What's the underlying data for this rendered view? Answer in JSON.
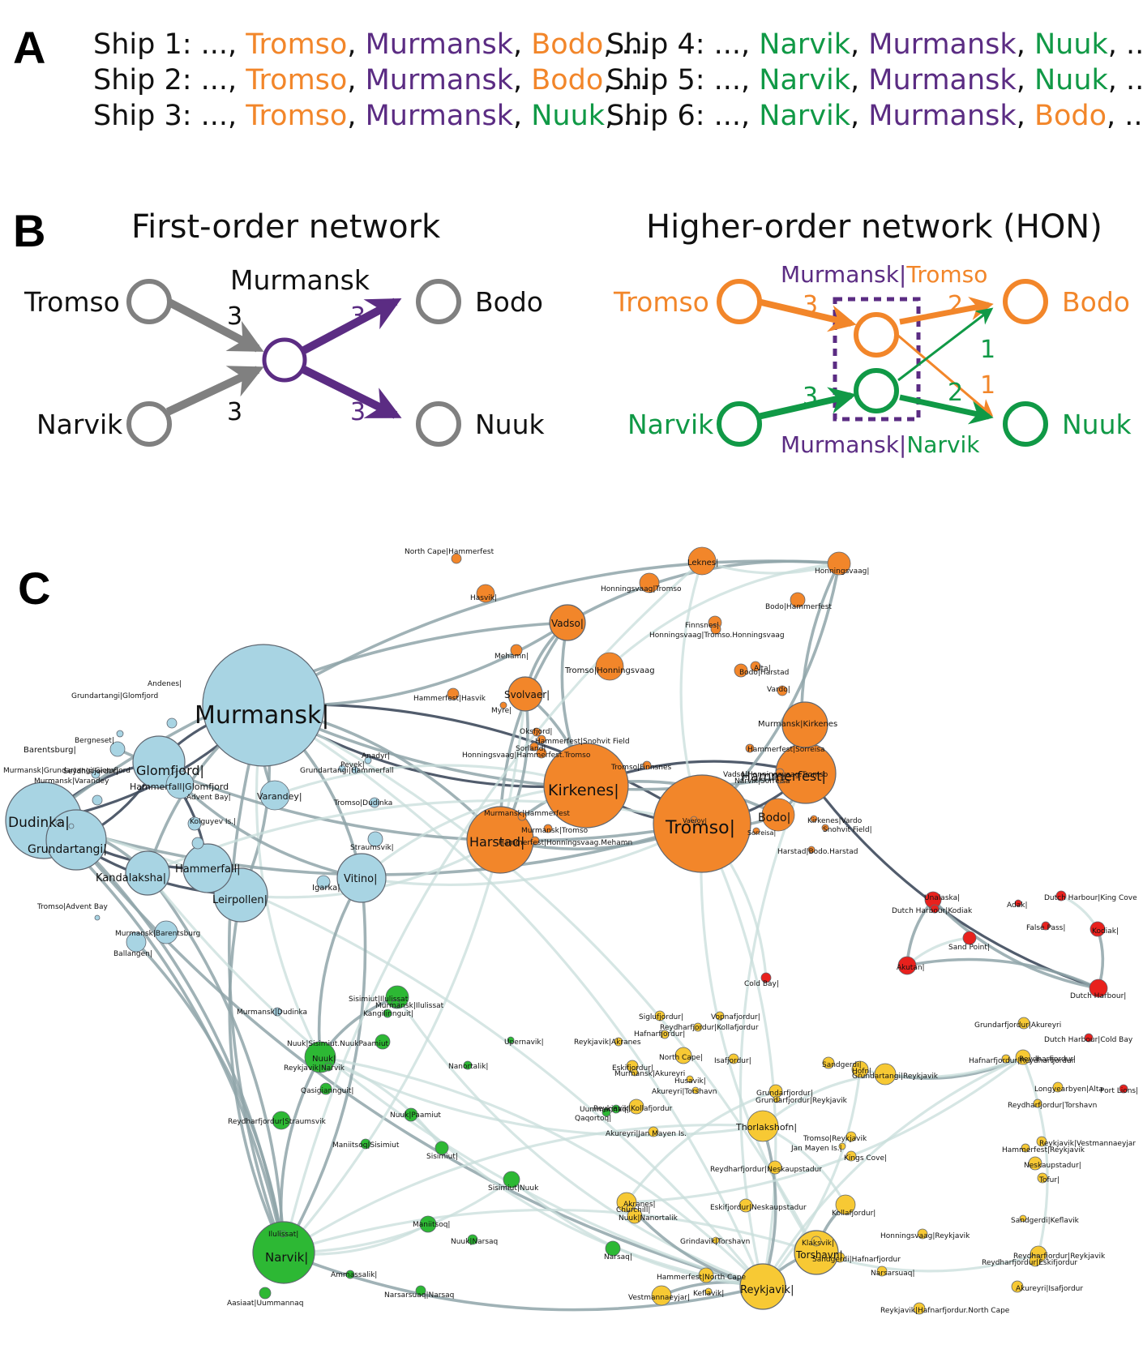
{
  "panel_a": {
    "letter": "A",
    "colors": {
      "text": "#111111",
      "tromso": "#f2862a",
      "murmansk": "#5b2c83",
      "bodo": "#f2862a",
      "nuuk": "#109946",
      "narvik": "#109946"
    },
    "ships": [
      {
        "label": "Ship 1:",
        "lead": " ..., ",
        "ports": [
          {
            "name": "Tromso",
            "color": "tromso"
          },
          {
            "name": "Murmansk",
            "color": "murmansk"
          },
          {
            "name": "Bodo",
            "color": "bodo"
          }
        ],
        "tail": ", ..."
      },
      {
        "label": "Ship 2:",
        "lead": " ..., ",
        "ports": [
          {
            "name": "Tromso",
            "color": "tromso"
          },
          {
            "name": "Murmansk",
            "color": "murmansk"
          },
          {
            "name": "Bodo",
            "color": "bodo"
          }
        ],
        "tail": ", ..."
      },
      {
        "label": "Ship 3:",
        "lead": " ..., ",
        "ports": [
          {
            "name": "Tromso",
            "color": "tromso"
          },
          {
            "name": "Murmansk",
            "color": "murmansk"
          },
          {
            "name": "Nuuk",
            "color": "nuuk"
          }
        ],
        "tail": ", ..."
      },
      {
        "label": "Ship 4:",
        "lead": " ..., ",
        "ports": [
          {
            "name": "Narvik",
            "color": "narvik"
          },
          {
            "name": "Murmansk",
            "color": "murmansk"
          },
          {
            "name": "Nuuk",
            "color": "nuuk"
          }
        ],
        "tail": ", ..."
      },
      {
        "label": "Ship 5:",
        "lead": " ..., ",
        "ports": [
          {
            "name": "Narvik",
            "color": "narvik"
          },
          {
            "name": "Murmansk",
            "color": "murmansk"
          },
          {
            "name": "Nuuk",
            "color": "nuuk"
          }
        ],
        "tail": ", ..."
      },
      {
        "label": "Ship 6:",
        "lead": " ..., ",
        "ports": [
          {
            "name": "Narvik",
            "color": "narvik"
          },
          {
            "name": "Murmansk",
            "color": "murmansk"
          },
          {
            "name": "Bodo",
            "color": "bodo"
          }
        ],
        "tail": ", ..."
      }
    ]
  },
  "panel_b": {
    "letter": "B",
    "first_order": {
      "title": "First-order network",
      "labels": {
        "tromso": "Tromso",
        "narvik": "Narvik",
        "murmansk": "Murmansk",
        "bodo": "Bodo",
        "nuuk": "Nuuk"
      },
      "weights": {
        "tromso_murmansk": "3",
        "narvik_murmansk": "3",
        "murmansk_bodo": "3",
        "murmansk_nuuk": "3"
      },
      "colors": {
        "gray": "#808080",
        "purple": "#5b2c83"
      }
    },
    "hon": {
      "title": "Higher-order network (HON)",
      "labels": {
        "tromso": "Tromso",
        "narvik": "Narvik",
        "bodo": "Bodo",
        "nuuk": "Nuuk",
        "murmansk_tromso": "Murmansk|Tromso",
        "murmansk_narvik": "Murmansk|Narvik"
      },
      "weights": {
        "tromso_mt": "3",
        "narvik_mn": "3",
        "mt_bodo": "2",
        "mt_nuuk": "1",
        "mn_bodo": "1",
        "mn_nuuk": "2"
      },
      "colors": {
        "orange": "#f2862a",
        "green": "#109946",
        "purple": "#5b2c83"
      }
    }
  },
  "panel_c": {
    "letter": "C",
    "group_colors": {
      "blue": "#a8d4e3",
      "orange": "#f2862a",
      "green": "#2db834",
      "yellow": "#f7c934",
      "red": "#e8211d"
    },
    "nodes": [
      {
        "label": "Murmansk|",
        "group": "blue"
      },
      {
        "label": "Dudinka|",
        "group": "blue"
      },
      {
        "label": "Grundartangi|",
        "group": "blue"
      },
      {
        "label": "Glomfjord|",
        "group": "blue"
      },
      {
        "label": "Hammerfall|Glomfjord",
        "group": "blue"
      },
      {
        "label": "Kandalaksha|",
        "group": "blue"
      },
      {
        "label": "Hammerfall|",
        "group": "blue"
      },
      {
        "label": "Leirpollen|",
        "group": "blue"
      },
      {
        "label": "Vitino|",
        "group": "blue"
      },
      {
        "label": "Varandey|",
        "group": "blue"
      },
      {
        "label": "Barentsburg|",
        "group": "blue"
      },
      {
        "label": "Igarka|",
        "group": "blue"
      },
      {
        "label": "Ballangen|",
        "group": "blue"
      },
      {
        "label": "Andenes|",
        "group": "blue"
      },
      {
        "label": "Grundartangi|Glomfjord",
        "group": "blue"
      },
      {
        "label": "Bergneset|",
        "group": "blue"
      },
      {
        "label": "Seydhisfjordur|",
        "group": "blue"
      },
      {
        "label": "Murmansk|Grundartangi.Glomfjord",
        "group": "blue"
      },
      {
        "label": "Murmansk|Varandey",
        "group": "blue"
      },
      {
        "label": "Advent Bay|",
        "group": "blue"
      },
      {
        "label": "Kolguyev Is.|",
        "group": "blue"
      },
      {
        "label": "Tromso|Advent Bay",
        "group": "blue"
      },
      {
        "label": "Murmansk|Barentsburg",
        "group": "blue"
      },
      {
        "label": "Anadyr|",
        "group": "blue"
      },
      {
        "label": "Grundartangi|Hammerfall",
        "group": "blue"
      },
      {
        "label": "Tromso|Dudinka",
        "group": "blue"
      },
      {
        "label": "Straumsvik|",
        "group": "blue"
      },
      {
        "label": "Pevek|",
        "group": "blue"
      },
      {
        "label": "Murmansk|Dudinka",
        "group": "blue"
      },
      {
        "label": "Kirkenes|",
        "group": "orange"
      },
      {
        "label": "Tromso|",
        "group": "orange"
      },
      {
        "label": "Harstad|",
        "group": "orange"
      },
      {
        "label": "Hammerfest|",
        "group": "orange"
      },
      {
        "label": "Bodo|",
        "group": "orange"
      },
      {
        "label": "Vadso|",
        "group": "orange"
      },
      {
        "label": "Svolvaer|",
        "group": "orange"
      },
      {
        "label": "Leknes|",
        "group": "orange"
      },
      {
        "label": "Honningsvaag|",
        "group": "orange"
      },
      {
        "label": "Tromso|Honningsvaag",
        "group": "orange"
      },
      {
        "label": "Murmansk|Kirkenes",
        "group": "orange"
      },
      {
        "label": "North Cape|Hammerfest",
        "group": "orange"
      },
      {
        "label": "Hasvik|",
        "group": "orange"
      },
      {
        "label": "Honningsvaag|Tromso",
        "group": "orange"
      },
      {
        "label": "Bodo|Hammerfest",
        "group": "orange"
      },
      {
        "label": "Finnsnes|",
        "group": "orange"
      },
      {
        "label": "Honningsvaag|Tromso.Honningsvaag",
        "group": "orange"
      },
      {
        "label": "Mehamn|",
        "group": "orange"
      },
      {
        "label": "Alta|",
        "group": "orange"
      },
      {
        "label": "Bodo|Harstad",
        "group": "orange"
      },
      {
        "label": "Vardo|",
        "group": "orange"
      },
      {
        "label": "Hammerfest|Hasvik",
        "group": "orange"
      },
      {
        "label": "Myre|",
        "group": "orange"
      },
      {
        "label": "Oksfjord|",
        "group": "orange"
      },
      {
        "label": "Hammerfest|Snohvit Field",
        "group": "orange"
      },
      {
        "label": "Sorland|",
        "group": "orange"
      },
      {
        "label": "Honningsvaag|Hammerfest.Tromso",
        "group": "orange"
      },
      {
        "label": "Tromso|Finnsnes",
        "group": "orange"
      },
      {
        "label": "Hammerfest|Sorreisa",
        "group": "orange"
      },
      {
        "label": "Vadso|Honningsvaag.Tromso",
        "group": "orange"
      },
      {
        "label": "Narvik|Sorreisa",
        "group": "orange"
      },
      {
        "label": "Murmansk|Hammerfest",
        "group": "orange"
      },
      {
        "label": "Murmansk|Tromso",
        "group": "orange"
      },
      {
        "label": "Hammerfest|Honningsvaag.Mehamn",
        "group": "orange"
      },
      {
        "label": "Vaeroy|",
        "group": "orange"
      },
      {
        "label": "Sorreisa|",
        "group": "orange"
      },
      {
        "label": "Kirkenes|Vardo",
        "group": "orange"
      },
      {
        "label": "Snohvit Field|",
        "group": "orange"
      },
      {
        "label": "Harstad|Bodo.Harstad",
        "group": "orange"
      },
      {
        "label": "Narvik|",
        "group": "green"
      },
      {
        "label": "Nuuk|",
        "group": "green"
      },
      {
        "label": "Ilulissat|",
        "group": "green"
      },
      {
        "label": "Sisimiut|Ilulissat",
        "group": "green"
      },
      {
        "label": "Murmansk|Ilulissat",
        "group": "green"
      },
      {
        "label": "Kangilinnguit|",
        "group": "green"
      },
      {
        "label": "Nuuk|Sisimiut.NuukPaamiut",
        "group": "green"
      },
      {
        "label": "Reykjavik|Narvik",
        "group": "green"
      },
      {
        "label": "Qasigiannguit|",
        "group": "green"
      },
      {
        "label": "Upernavik|",
        "group": "green"
      },
      {
        "label": "Nanortalik|",
        "group": "green"
      },
      {
        "label": "Nuuk|Paamiut",
        "group": "green"
      },
      {
        "label": "Reydharfjordur|Straumsvik",
        "group": "green"
      },
      {
        "label": "Maniitsoq|Sisimiut",
        "group": "green"
      },
      {
        "label": "Sisimiut|",
        "group": "green"
      },
      {
        "label": "Sisimiut|Nuuk",
        "group": "green"
      },
      {
        "label": "Maniitsoq|",
        "group": "green"
      },
      {
        "label": "Nuuk|Narsaq",
        "group": "green"
      },
      {
        "label": "Narsaq|",
        "group": "green"
      },
      {
        "label": "Ammassalik|",
        "group": "green"
      },
      {
        "label": "Aasiaat|Uummannaq",
        "group": "green"
      },
      {
        "label": "Narsarsuaq|Narsaq",
        "group": "green"
      },
      {
        "label": "Uummannaq|",
        "group": "green"
      },
      {
        "label": "Qaqortoq|",
        "group": "green"
      },
      {
        "label": "Reykjavik|",
        "group": "yellow"
      },
      {
        "label": "Torshavn|",
        "group": "yellow"
      },
      {
        "label": "Thorlakshofn|",
        "group": "yellow"
      },
      {
        "label": "Klaksvik|",
        "group": "yellow"
      },
      {
        "label": "Akranes|",
        "group": "yellow"
      },
      {
        "label": "Kollafjordur|",
        "group": "yellow"
      },
      {
        "label": "Grundartangi|Reykjavik",
        "group": "yellow"
      },
      {
        "label": "Hofn|",
        "group": "yellow"
      },
      {
        "label": "Grundarfjordur|",
        "group": "yellow"
      },
      {
        "label": "Grundarfjordur|Reykjavik",
        "group": "yellow"
      },
      {
        "label": "Siglufjordur|",
        "group": "yellow"
      },
      {
        "label": "Reydharfjordur|Kollafjordur",
        "group": "yellow"
      },
      {
        "label": "Hafnarfjordur|",
        "group": "yellow"
      },
      {
        "label": "Reykjavik|Akranes",
        "group": "yellow"
      },
      {
        "label": "Vopnafjordur|",
        "group": "yellow"
      },
      {
        "label": "North Cape|",
        "group": "yellow"
      },
      {
        "label": "Isafjordur|",
        "group": "yellow"
      },
      {
        "label": "Eskifjordur|",
        "group": "yellow"
      },
      {
        "label": "Murmansk|Akureyri",
        "group": "yellow"
      },
      {
        "label": "Husavik|",
        "group": "yellow"
      },
      {
        "label": "Akureyri|Torshavn",
        "group": "yellow"
      },
      {
        "label": "Reykjavik|Kollafjordur",
        "group": "yellow"
      },
      {
        "label": "Akureyri|Jan Mayen Is.",
        "group": "yellow"
      },
      {
        "label": "Jan Mayen Is.|",
        "group": "yellow"
      },
      {
        "label": "Reydharfjordur|Neskaupstadur",
        "group": "yellow"
      },
      {
        "label": "Eskifjordur|Neskaupstadur",
        "group": "yellow"
      },
      {
        "label": "Nuuk|Nanortalik",
        "group": "yellow"
      },
      {
        "label": "Churchill|",
        "group": "yellow"
      },
      {
        "label": "Grindavik|Torshavn",
        "group": "yellow"
      },
      {
        "label": "Hammerfest|North Cape",
        "group": "yellow"
      },
      {
        "label": "Vestmannaeyjar|",
        "group": "yellow"
      },
      {
        "label": "Keflavik|",
        "group": "yellow"
      },
      {
        "label": "Sandgerdi|Hafnarfjordur",
        "group": "yellow"
      },
      {
        "label": "Narsarsuaq|",
        "group": "yellow"
      },
      {
        "label": "Honningsvaag|Reykjavik",
        "group": "yellow"
      },
      {
        "label": "Reydharfjordur|Eskifjordur",
        "group": "yellow"
      },
      {
        "label": "Akureyri|Isafjordur",
        "group": "yellow"
      },
      {
        "label": "Reykjavik|Hafnarfjordur.North Cape",
        "group": "yellow"
      },
      {
        "label": "Sandgerdi|Keflavik",
        "group": "yellow"
      },
      {
        "label": "Reydharfjordur|Reykjavik",
        "group": "yellow"
      },
      {
        "label": "Tofur|",
        "group": "yellow"
      },
      {
        "label": "Neskaupstadur|",
        "group": "yellow"
      },
      {
        "label": "Hammerfest|Reykjavik",
        "group": "yellow"
      },
      {
        "label": "Reykjavik|Vestmannaeyjar",
        "group": "yellow"
      },
      {
        "label": "Reydharfjordur|Torshavn",
        "group": "yellow"
      },
      {
        "label": "Longyearbyen|Alta",
        "group": "yellow"
      },
      {
        "label": "Reydharfjordur|",
        "group": "yellow"
      },
      {
        "label": "Grundarfjordur|Akureyri",
        "group": "yellow"
      },
      {
        "label": "Sandgerdi|",
        "group": "yellow"
      },
      {
        "label": "Hafnarfjordur|Reydharfjordur",
        "group": "yellow"
      },
      {
        "label": "Kings Cove|",
        "group": "yellow"
      },
      {
        "label": "Tromso|Reykjavik",
        "group": "yellow"
      },
      {
        "label": "Dutch Harbour|",
        "group": "red"
      },
      {
        "label": "Akutan|",
        "group": "red"
      },
      {
        "label": "Unalaska|",
        "group": "red"
      },
      {
        "label": "Dutch Harbour|Kodiak",
        "group": "red"
      },
      {
        "label": "Dutch Harbour|King Cove",
        "group": "red"
      },
      {
        "label": "Adak|",
        "group": "red"
      },
      {
        "label": "False Pass|",
        "group": "red"
      },
      {
        "label": "Kodiak|",
        "group": "red"
      },
      {
        "label": "Sand Point|",
        "group": "red"
      },
      {
        "label": "Cold Bay|",
        "group": "red"
      },
      {
        "label": "Dutch Harbour|Cold Bay",
        "group": "red"
      },
      {
        "label": "Port Lions|",
        "group": "red"
      }
    ]
  }
}
